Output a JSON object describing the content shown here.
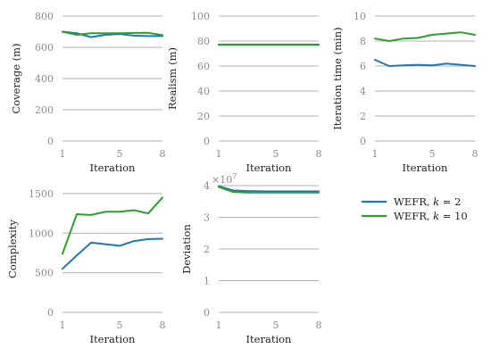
{
  "chart_data": [
    {
      "type": "line",
      "xlabel": "Iteration",
      "ylabel": "Coverage (m)",
      "xticks": [
        1,
        5,
        8
      ],
      "yticks": [
        0,
        200,
        400,
        600,
        800
      ],
      "ylim": [
        0,
        800
      ],
      "grid": true,
      "x": [
        1,
        2,
        3,
        4,
        5,
        6,
        7,
        8
      ],
      "series": [
        {
          "name": "WEFR, k = 2",
          "values": [
            700,
            690,
            665,
            680,
            685,
            675,
            672,
            672
          ]
        },
        {
          "name": "WEFR, k = 10",
          "values": [
            700,
            680,
            690,
            690,
            690,
            692,
            693,
            678
          ]
        }
      ]
    },
    {
      "type": "line",
      "xlabel": "Iteration",
      "ylabel": "Realism (m)",
      "xticks": [
        1,
        5,
        8
      ],
      "yticks": [
        0,
        20,
        40,
        60,
        80,
        100
      ],
      "ylim": [
        0,
        100
      ],
      "grid": true,
      "x": [
        1,
        2,
        3,
        4,
        5,
        6,
        7,
        8
      ],
      "series": [
        {
          "name": "WEFR, k = 2",
          "values": [
            77,
            77,
            77,
            77,
            77,
            77,
            77,
            77
          ]
        },
        {
          "name": "WEFR, k = 10",
          "values": [
            77.2,
            77.2,
            77.2,
            77.2,
            77.2,
            77.2,
            77.2,
            77.2
          ]
        }
      ]
    },
    {
      "type": "line",
      "xlabel": "Iteration",
      "ylabel": "Iteration time (min)",
      "xticks": [
        1,
        5,
        8
      ],
      "yticks": [
        0,
        2,
        4,
        6,
        8,
        10
      ],
      "ylim": [
        0,
        10
      ],
      "grid": true,
      "x": [
        1,
        2,
        3,
        4,
        5,
        6,
        7,
        8
      ],
      "series": [
        {
          "name": "WEFR, k = 2",
          "values": [
            6.5,
            6.0,
            6.05,
            6.1,
            6.05,
            6.2,
            6.1,
            6.0
          ]
        },
        {
          "name": "WEFR, k = 10",
          "values": [
            8.2,
            8.0,
            8.2,
            8.25,
            8.5,
            8.6,
            8.7,
            8.5
          ]
        }
      ]
    },
    {
      "type": "line",
      "xlabel": "Iteration",
      "ylabel": "Complexity",
      "xticks": [
        1,
        5,
        8
      ],
      "yticks": [
        0,
        500,
        1000,
        1500
      ],
      "ylim": [
        0,
        1600
      ],
      "grid": true,
      "x": [
        1,
        2,
        3,
        4,
        5,
        6,
        7,
        8
      ],
      "series": [
        {
          "name": "WEFR, k = 2",
          "values": [
            550,
            720,
            880,
            860,
            840,
            900,
            925,
            930
          ]
        },
        {
          "name": "WEFR, k = 10",
          "values": [
            740,
            1240,
            1230,
            1270,
            1270,
            1290,
            1250,
            1450
          ]
        }
      ]
    },
    {
      "type": "line",
      "xlabel": "Iteration",
      "ylabel": "Deviation",
      "axis_multiplier": "×10",
      "axis_multiplier_exp": "7",
      "xticks": [
        1,
        5,
        8
      ],
      "yticks": [
        0,
        1,
        2,
        3,
        4
      ],
      "ylim": [
        0,
        4
      ],
      "grid": true,
      "x": [
        1,
        2,
        3,
        4,
        5,
        6,
        7,
        8
      ],
      "series": [
        {
          "name": "WEFR, k = 2",
          "values": [
            3.98,
            3.85,
            3.83,
            3.82,
            3.82,
            3.82,
            3.82,
            3.82
          ]
        },
        {
          "name": "WEFR, k = 10",
          "values": [
            3.96,
            3.8,
            3.78,
            3.78,
            3.78,
            3.78,
            3.78,
            3.78
          ]
        }
      ]
    }
  ],
  "legend": {
    "placement": "right",
    "entries": [
      {
        "prefix": "WEFR, ",
        "var": "k",
        "suffix": " = 2",
        "color": "#1f77b4"
      },
      {
        "prefix": "WEFR, ",
        "var": "k",
        "suffix": " = 10",
        "color": "#2ca02c"
      }
    ]
  },
  "colors": {
    "series_1": "#1f77b4",
    "series_2": "#2ca02c"
  }
}
